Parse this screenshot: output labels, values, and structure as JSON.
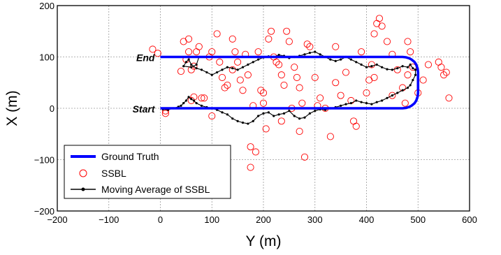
{
  "chart_data": {
    "type": "scatter",
    "title": "",
    "xlabel": "Y (m)",
    "ylabel": "X (m)",
    "xlim": [
      -200,
      600
    ],
    "ylim": [
      -200,
      200
    ],
    "xticks": [
      "−200",
      "−100",
      "0",
      "100",
      "200",
      "300",
      "400",
      "500",
      "600"
    ],
    "yticks": [
      "−200",
      "−100",
      "0",
      "100",
      "200"
    ],
    "grid": true,
    "legend_position": "bottom-left",
    "annotations": [
      {
        "text": "End",
        "x": 0,
        "y": 100
      },
      {
        "text": "Start",
        "x": 0,
        "y": 0
      }
    ],
    "series": [
      {
        "name": "Ground Truth",
        "style": "line",
        "color": "#0000ff",
        "x": [
          0,
          470,
          476.5,
          482.5,
          487.5,
          493.3,
          496.6,
          499.1,
          500,
          500,
          499.1,
          496.6,
          493.3,
          487.5,
          482.5,
          476.5,
          470,
          0
        ],
        "y": [
          100,
          100,
          99.3,
          97.5,
          95,
          90,
          85,
          77.5,
          70,
          30,
          22.5,
          15,
          10,
          5,
          2.5,
          0.7,
          0,
          0
        ]
      },
      {
        "name": "SSBL",
        "style": "markers",
        "color": "#ff0000",
        "x": [
          -15,
          -5,
          10,
          40,
          45,
          50,
          55,
          55,
          60,
          65,
          65,
          70,
          80,
          95,
          100,
          110,
          115,
          120,
          125,
          130,
          140,
          145,
          150,
          155,
          160,
          165,
          170,
          175,
          180,
          185,
          190,
          195,
          200,
          205,
          210,
          215,
          220,
          225,
          230,
          235,
          240,
          245,
          250,
          255,
          260,
          265,
          270,
          275,
          280,
          285,
          290,
          300,
          310,
          320,
          330,
          340,
          350,
          360,
          370,
          380,
          390,
          400,
          405,
          410,
          415,
          420,
          425,
          430,
          440,
          450,
          460,
          470,
          475,
          480,
          485,
          490,
          500,
          510,
          545,
          550,
          555,
          560,
          10,
          60,
          75,
          85,
          100,
          140,
          175,
          200,
          235,
          270,
          305,
          340,
          375,
          415,
          450,
          480,
          520,
          540
        ],
        "y": [
          115,
          107,
          -10,
          72,
          130,
          95,
          110,
          135,
          15,
          82,
          22,
          110,
          20,
          100,
          110,
          145,
          90,
          60,
          40,
          45,
          135,
          110,
          90,
          55,
          35,
          105,
          65,
          -115,
          5,
          -85,
          110,
          35,
          30,
          -40,
          135,
          150,
          100,
          90,
          85,
          65,
          45,
          150,
          130,
          0,
          80,
          60,
          40,
          10,
          -95,
          125,
          120,
          60,
          20,
          0,
          -55,
          120,
          25,
          70,
          15,
          -35,
          110,
          30,
          55,
          85,
          145,
          165,
          175,
          160,
          130,
          105,
          75,
          40,
          10,
          65,
          110,
          80,
          30,
          55,
          80,
          65,
          70,
          20,
          -5,
          75,
          120,
          20,
          -15,
          75,
          -75,
          10,
          -25,
          -45,
          5,
          50,
          -25,
          60,
          25,
          130,
          85,
          90
        ]
      },
      {
        "name": "Moving Average of SSBL",
        "style": "line-markers",
        "color": "#000000",
        "x": [
          5,
          15,
          25,
          35,
          40,
          45,
          50,
          55,
          60,
          65,
          70,
          80,
          90,
          100,
          110,
          120,
          130,
          140,
          150,
          160,
          170,
          180,
          190,
          200,
          210,
          220,
          230,
          240,
          250,
          260,
          270,
          280,
          290,
          300,
          310,
          320,
          330,
          340,
          350,
          360,
          370,
          380,
          390,
          400,
          410,
          420,
          430,
          440,
          450,
          460,
          470,
          480,
          485,
          490,
          495,
          495,
          490,
          485,
          480,
          470,
          460,
          450,
          440,
          430,
          420,
          410,
          400,
          390,
          380,
          370,
          360,
          350,
          340,
          330,
          320,
          310,
          300,
          290,
          280,
          270,
          260,
          250,
          240,
          230,
          220,
          210,
          200,
          190,
          180,
          170,
          160,
          150,
          140,
          130,
          120,
          110,
          100,
          90,
          80,
          70,
          60,
          55,
          50,
          45,
          60,
          70,
          75
        ],
        "y": [
          -2,
          -3,
          0,
          3,
          5,
          10,
          15,
          22,
          18,
          15,
          10,
          5,
          2,
          0,
          -3,
          -8,
          -12,
          -20,
          -25,
          -28,
          -30,
          -25,
          -15,
          -10,
          -8,
          -15,
          -12,
          -10,
          -5,
          -15,
          -20,
          -18,
          -10,
          -5,
          -2,
          -3,
          0,
          2,
          5,
          8,
          10,
          15,
          12,
          10,
          8,
          12,
          15,
          20,
          25,
          30,
          35,
          40,
          45,
          55,
          65,
          75,
          78,
          85,
          80,
          82,
          78,
          75,
          76,
          80,
          85,
          82,
          80,
          85,
          90,
          95,
          100,
          95,
          92,
          95,
          100,
          105,
          110,
          108,
          105,
          102,
          100,
          98,
          102,
          104,
          100,
          101,
          99,
          95,
          90,
          85,
          80,
          75,
          78,
          80,
          75,
          70,
          65,
          70,
          75,
          78,
          85,
          95,
          90,
          82,
          80,
          85,
          100
        ]
      }
    ]
  }
}
